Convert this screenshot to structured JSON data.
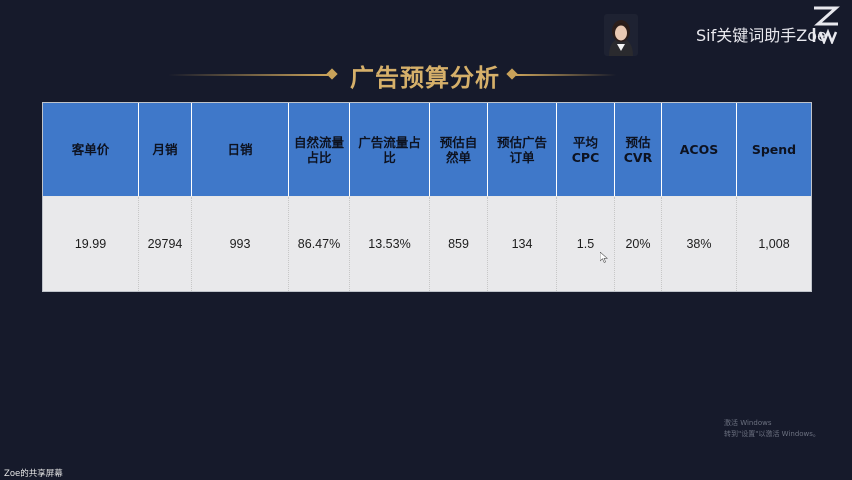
{
  "slide": {
    "title": "广告预算分析",
    "accent_color": "#c9a25a",
    "header_color": "#3f78c9"
  },
  "overlay": {
    "name_text": "Sif关键词助手Zoe",
    "avatar_icon": "presenter-avatar-icon",
    "logo_icon": "lwz-logo-icon"
  },
  "table": {
    "headers": [
      "客单价",
      "月销",
      "日销",
      "自然流量\n占比",
      "广告流量占\n比",
      "预估自\n然单",
      "预估广告\n订单",
      "平均\nCPC",
      "预估\nCVR",
      "ACOS",
      "Spend"
    ],
    "values": [
      "19.99",
      "29794",
      "993",
      "86.47%",
      "13.53%",
      "859",
      "134",
      "1.5",
      "20%",
      "38%",
      "1,008"
    ]
  },
  "watermark": {
    "line1": "激活 Windows",
    "line2": "转到\"设置\"以激活 Windows。"
  },
  "footer": {
    "label": "Zoe的共享屏幕"
  }
}
